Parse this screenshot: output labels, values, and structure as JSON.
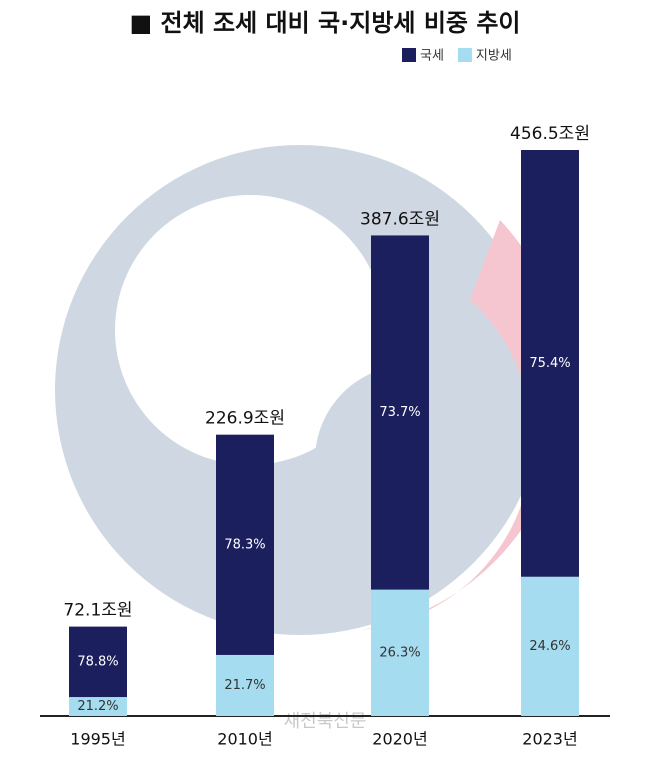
{
  "chart_data": {
    "type": "stacked-bar",
    "title": "■ 전체 조세 대비 국·지방세 비중 추이",
    "categories": [
      "1995년",
      "2010년",
      "2020년",
      "2023년"
    ],
    "totals": {
      "values": [
        72.1,
        226.9,
        387.6,
        456.5
      ],
      "value_labels": [
        "72.1조원",
        "226.9조원",
        "387.6조원",
        "456.5조원"
      ]
    },
    "series": [
      {
        "name": "국세",
        "color": "#1b1f5e",
        "values": [
          78.8,
          78.3,
          73.7,
          75.4
        ],
        "value_labels": [
          "78.8%",
          "78.3%",
          "73.7%",
          "75.4%"
        ]
      },
      {
        "name": "지방세",
        "color": "#a6dcef",
        "values": [
          21.2,
          21.7,
          26.3,
          24.6
        ],
        "value_labels": [
          "21.2%",
          "21.7%",
          "26.3%",
          "24.6%"
        ]
      }
    ],
    "watermark": "새전북신문"
  }
}
